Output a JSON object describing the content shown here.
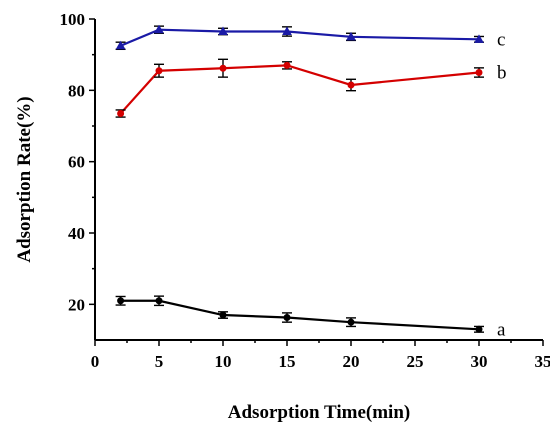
{
  "chart_data": {
    "type": "line",
    "title": "",
    "xlabel": "Adsorption Time(min)",
    "ylabel": "Adsorption Rate(%)",
    "xlim": [
      0,
      35
    ],
    "ylim": [
      10,
      100
    ],
    "xticks": [
      0,
      5,
      10,
      15,
      20,
      25,
      30,
      35
    ],
    "yticks": [
      20,
      40,
      60,
      80,
      100
    ],
    "grid": false,
    "x": [
      2,
      5,
      10,
      15,
      20,
      30
    ],
    "series": [
      {
        "name": "a",
        "color": "#000000",
        "marker": "circle",
        "values": [
          21.0,
          21.0,
          17.0,
          16.3,
          15.0,
          13.0
        ],
        "errors": [
          1.2,
          1.3,
          0.9,
          1.3,
          1.2,
          0.8
        ]
      },
      {
        "name": "b",
        "color": "#d40000",
        "marker": "circle",
        "values": [
          73.5,
          85.5,
          86.2,
          87.0,
          81.5,
          85.0
        ],
        "errors": [
          1.0,
          1.8,
          2.5,
          1.0,
          1.6,
          1.3
        ]
      },
      {
        "name": "c",
        "color": "#1a1aa6",
        "marker": "triangle",
        "values": [
          92.5,
          97.0,
          96.5,
          96.5,
          95.0,
          94.3
        ],
        "errors": [
          1.0,
          1.0,
          0.9,
          1.3,
          1.0,
          0.8
        ]
      }
    ]
  }
}
